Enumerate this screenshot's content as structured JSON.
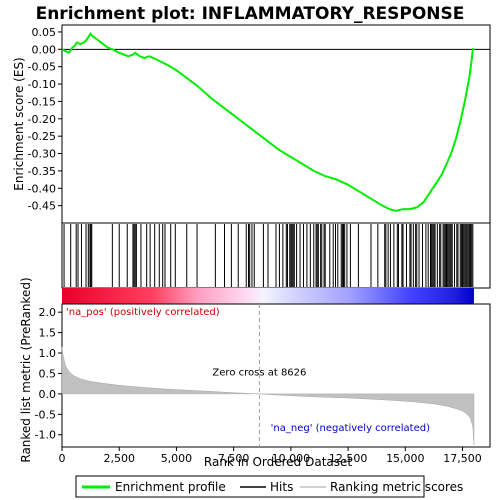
{
  "chart_data": {
    "type": "line",
    "title": "Enrichment plot: INFLAMMATORY_RESPONSE",
    "panels": {
      "enrichment": {
        "ylabel": "Enrichment score (ES)",
        "ylim": [
          -0.5,
          0.07
        ],
        "yticks": [
          0.05,
          0.0,
          -0.05,
          -0.1,
          -0.15,
          -0.2,
          -0.25,
          -0.3,
          -0.35,
          -0.4,
          -0.45
        ],
        "ytick_labels": [
          "0.05",
          "0.00",
          "-0.05",
          "-0.10",
          "-0.15",
          "-0.20",
          "-0.25",
          "-0.30",
          "-0.35",
          "-0.40",
          "-0.45"
        ],
        "series_name": "Enrichment profile",
        "color": "#00ee00",
        "x": [
          0,
          300,
          450,
          550,
          650,
          800,
          950,
          1050,
          1150,
          1250,
          1300,
          1400,
          1600,
          1800,
          2000,
          2200,
          2500,
          2700,
          2900,
          3100,
          3200,
          3400,
          3600,
          3800,
          4000,
          4300,
          4600,
          5000,
          5500,
          6000,
          6500,
          7000,
          7500,
          8000,
          8500,
          9000,
          9500,
          10000,
          10500,
          11000,
          11500,
          12000,
          12500,
          13000,
          13500,
          14000,
          14300,
          14600,
          14900,
          15200,
          15500,
          15800,
          16000,
          16200,
          16400,
          16600,
          16800,
          17000,
          17200,
          17400,
          17600,
          17800,
          17900,
          17950,
          18000
        ],
        "y": [
          0.0,
          -0.01,
          0.005,
          0.01,
          0.02,
          0.015,
          0.02,
          0.025,
          0.035,
          0.045,
          0.04,
          0.035,
          0.025,
          0.015,
          0.005,
          0.0,
          -0.01,
          -0.015,
          -0.02,
          -0.015,
          -0.01,
          -0.02,
          -0.025,
          -0.02,
          -0.025,
          -0.035,
          -0.045,
          -0.06,
          -0.085,
          -0.11,
          -0.14,
          -0.165,
          -0.19,
          -0.215,
          -0.24,
          -0.265,
          -0.29,
          -0.31,
          -0.33,
          -0.35,
          -0.365,
          -0.375,
          -0.39,
          -0.41,
          -0.43,
          -0.45,
          -0.46,
          -0.465,
          -0.46,
          -0.46,
          -0.455,
          -0.44,
          -0.42,
          -0.4,
          -0.38,
          -0.36,
          -0.33,
          -0.3,
          -0.26,
          -0.21,
          -0.15,
          -0.08,
          -0.03,
          0.0,
          0.002
        ]
      },
      "hits": {
        "positions": [
          90,
          380,
          620,
          700,
          850,
          1050,
          1150,
          1220,
          1260,
          1300,
          2200,
          2500,
          2850,
          3100,
          3150,
          3200,
          3250,
          3450,
          3700,
          3850,
          4050,
          4250,
          4400,
          4500,
          4750,
          4950,
          5450,
          5900,
          6700,
          7100,
          7400,
          7700,
          8050,
          8150,
          8200,
          8300,
          8400,
          8800,
          9000,
          9350,
          9500,
          9650,
          9800,
          9850,
          9950,
          10000,
          10050,
          10100,
          10150,
          10250,
          10400,
          10550,
          10700,
          10850,
          11000,
          11100,
          11150,
          11200,
          11300,
          11350,
          11450,
          11500,
          11700,
          11850,
          11950,
          12050,
          12200,
          12250,
          12300,
          12350,
          12450,
          12600,
          12950,
          13500,
          13800,
          14100,
          14150,
          14250,
          14350,
          14500,
          14650,
          14700,
          14850,
          14900,
          15050,
          15200,
          15250,
          15350,
          15450,
          15500,
          15600,
          15750,
          15900,
          16000,
          16100,
          16150,
          16200,
          16250,
          16300,
          16400,
          16500,
          16550,
          16650,
          16700,
          16750,
          16800,
          16850,
          16900,
          16950,
          17000,
          17050,
          17150,
          17250,
          17300,
          17400,
          17450,
          17500,
          17550,
          17600,
          17650,
          17700,
          17750,
          17800,
          17850,
          17900,
          17950
        ]
      },
      "ranking": {
        "ylabel": "Ranked list metric (PreRanked)",
        "ylim": [
          -1.3,
          2.2
        ],
        "yticks": [
          2.0,
          1.5,
          1.0,
          0.5,
          0.0,
          -0.5,
          -1.0
        ],
        "ytick_labels": [
          "2.0",
          "1.5",
          "1.0",
          "0.5",
          "0.0",
          "-0.5",
          "-1.0"
        ],
        "series_name": "Ranking metric scores",
        "color": "#c0c0c0",
        "x": [
          0,
          50,
          150,
          300,
          500,
          800,
          1200,
          1800,
          2500,
          3500,
          4500,
          5500,
          6500,
          7500,
          8626,
          9500,
          10500,
          11500,
          12500,
          13500,
          14500,
          15500,
          16300,
          16800,
          17200,
          17500,
          17700,
          17850,
          17950,
          18000
        ],
        "y": [
          1.15,
          0.95,
          0.7,
          0.55,
          0.45,
          0.37,
          0.31,
          0.26,
          0.21,
          0.16,
          0.12,
          0.09,
          0.06,
          0.03,
          0.0,
          -0.03,
          -0.06,
          -0.08,
          -0.1,
          -0.13,
          -0.16,
          -0.2,
          -0.25,
          -0.3,
          -0.36,
          -0.42,
          -0.5,
          -0.6,
          -0.8,
          -1.25
        ]
      }
    },
    "xaxis": {
      "label": "Rank in Ordered Dataset",
      "xlim": [
        0,
        18700
      ],
      "ticks": [
        0,
        2500,
        5000,
        7500,
        10000,
        12500,
        15000,
        17500
      ],
      "tick_labels": [
        "0",
        "2,500",
        "5,000",
        "7,500",
        "10,000",
        "12,500",
        "15,000",
        "17,500"
      ]
    },
    "zero_cross": {
      "rank": 8626,
      "label": "Zero cross at 8626"
    },
    "pos_label": "'na_pos' (positively correlated)",
    "neg_label": "'na_neg' (negatively correlated)",
    "n_genes": 18000,
    "legend": {
      "placement": "bottom",
      "entries": [
        "Enrichment profile",
        "Hits",
        "Ranking metric scores"
      ]
    }
  }
}
